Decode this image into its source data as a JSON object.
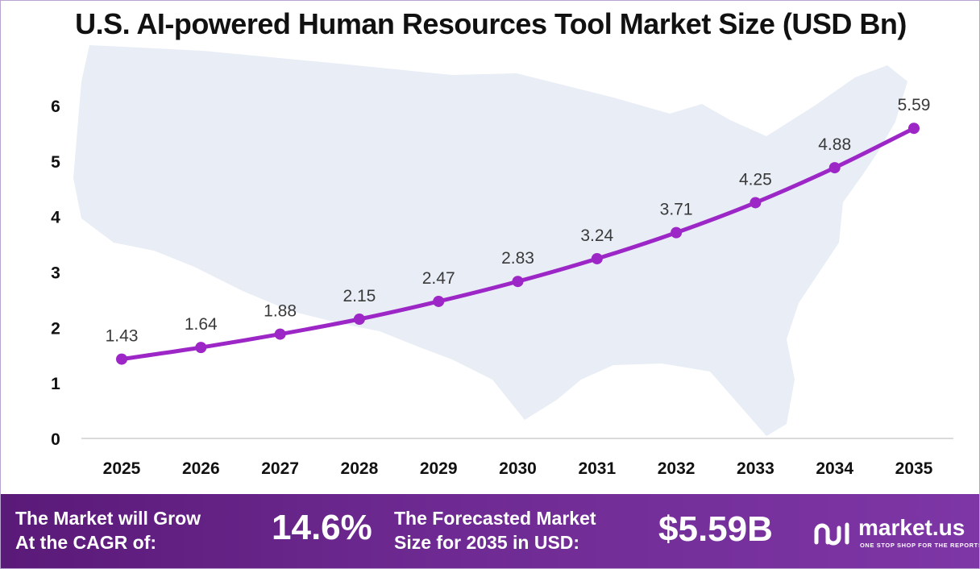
{
  "title": "U.S. AI-powered Human Resources Tool Market Size (USD Bn)",
  "chart_data": {
    "type": "line",
    "title": "U.S. AI-powered Human Resources Tool Market Size (USD Bn)",
    "categories": [
      "2025",
      "2026",
      "2027",
      "2028",
      "2029",
      "2030",
      "2031",
      "2032",
      "2033",
      "2034",
      "2035"
    ],
    "values": [
      1.43,
      1.64,
      1.88,
      2.15,
      2.47,
      2.83,
      3.24,
      3.71,
      4.25,
      4.88,
      5.59
    ],
    "data_labels": [
      "1.43",
      "1.64",
      "1.88",
      "2.15",
      "2.47",
      "2.83",
      "3.24",
      "3.71",
      "4.25",
      "4.88",
      "5.59"
    ],
    "yticks": [
      "0",
      "1",
      "2",
      "3",
      "4",
      "5",
      "6"
    ],
    "ylim": [
      0,
      6
    ],
    "grid": false,
    "xlabel": "",
    "ylabel": ""
  },
  "colors": {
    "line": "#9c27c6",
    "footer": "#6a2590",
    "map": "#e8edf6"
  },
  "footer": {
    "cagr_label_line1": "The Market will Grow",
    "cagr_label_line2": "At the CAGR of:",
    "cagr_value": "14.6%",
    "forecast_label_line1": "The Forecasted Market",
    "forecast_label_line2": "Size for 2035 in USD:",
    "forecast_value": "$5.59B"
  },
  "logo": {
    "name": "market.us",
    "tagline": "ONE STOP SHOP FOR THE REPORTS",
    "icon": "market-us-logo-icon"
  }
}
